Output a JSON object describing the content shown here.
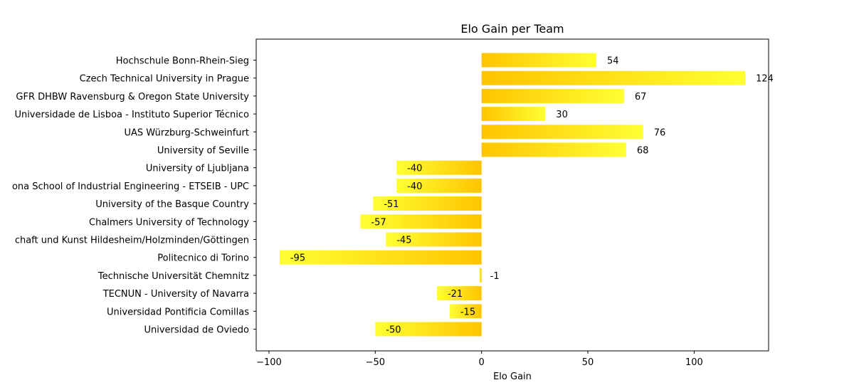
{
  "chart_data": {
    "type": "bar",
    "orientation": "horizontal",
    "title": "Elo Gain per Team",
    "xlabel": "Elo Gain",
    "ylabel": "",
    "xlim": [
      -106,
      135
    ],
    "xticks": [
      -100,
      -50,
      0,
      50,
      100
    ],
    "xtick_labels": [
      "−100",
      "−50",
      "0",
      "50",
      "100"
    ],
    "grid": false,
    "legend": "none",
    "colors": {
      "positive_start": "#FFC400",
      "positive_end": "#FFFF33",
      "negative_start": "#FFFF33",
      "negative_end": "#FFC400"
    },
    "categories": [
      "Hochschule Bonn-Rhein-Sieg",
      "Czech Technical University in Prague",
      "GFR DHBW Ravensburg & Oregon State University",
      "Universidade de Lisboa - Instituto Superior Técnico",
      "UAS Würzburg-Schweinfurt",
      "University of Seville",
      "University of Ljubljana",
      "ona School of Industrial Engineering - ETSEIB - UPC",
      "University of the Basque Country",
      "Chalmers University of Technology",
      "chaft und Kunst Hildesheim/Holzminden/Göttingen",
      "Politecnico di Torino",
      "Technische Universität Chemnitz",
      "TECNUN - University of Navarra",
      "Universidad Pontificia Comillas",
      "Universidad de Oviedo"
    ],
    "values": [
      54,
      124,
      67,
      30,
      76,
      68,
      -40,
      -40,
      -51,
      -57,
      -45,
      -95,
      -1,
      -21,
      -15,
      -50
    ]
  }
}
